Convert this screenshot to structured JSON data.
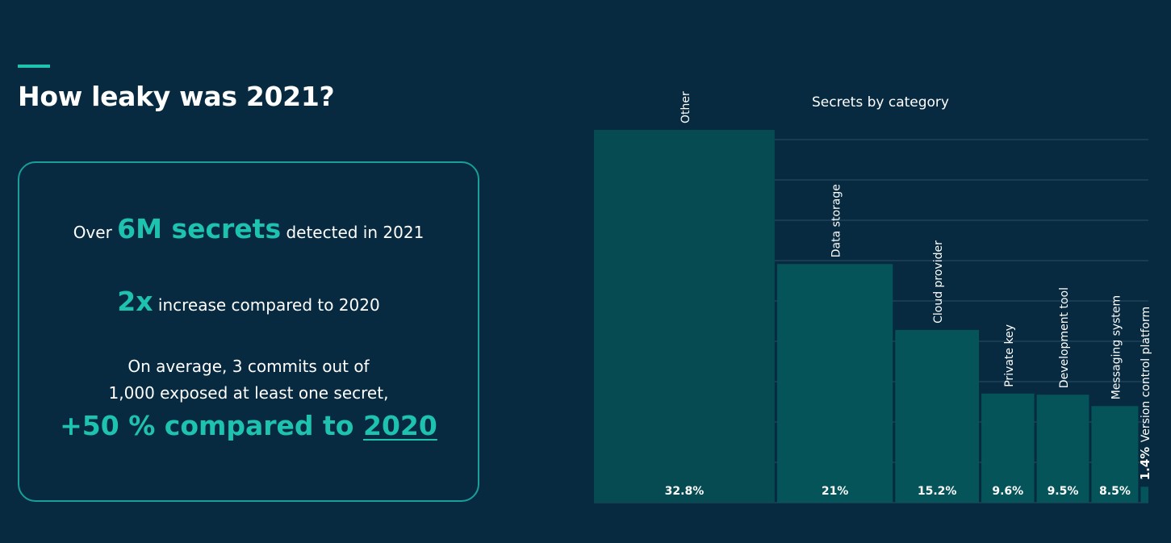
{
  "header": {
    "title": "How leaky was 2021?"
  },
  "stats": {
    "line1_prefix": "Over",
    "line1_highlight": "6M secrets",
    "line1_suffix": "detected in 2021",
    "line2_highlight": "2x",
    "line2_suffix": "increase compared to 2020",
    "line3_a": "On average, 3 commits out of",
    "line3_b": "1,000 exposed at least one secret,",
    "line4_prefix": "+50 % compared to",
    "line4_link": "2020"
  },
  "colors": {
    "background": "#072a40",
    "accent": "#1ec3b0",
    "bar": "#045459",
    "bar_dark": "#064a52",
    "grid": "#2d4e63"
  },
  "chart_data": {
    "type": "bar",
    "title": "Secrets by category",
    "categories": [
      "Other",
      "Data storage",
      "Cloud provider",
      "Private key",
      "Development tool",
      "Messaging system",
      "Version control platform"
    ],
    "values": [
      32.8,
      21,
      15.2,
      9.6,
      9.5,
      8.5,
      1.4
    ],
    "value_labels": [
      "32.8%",
      "21%",
      "15.2%",
      "9.6%",
      "9.5%",
      "8.5%",
      "1.4%"
    ],
    "xlabel": "",
    "ylabel": "",
    "grid": true,
    "legend": "none"
  }
}
